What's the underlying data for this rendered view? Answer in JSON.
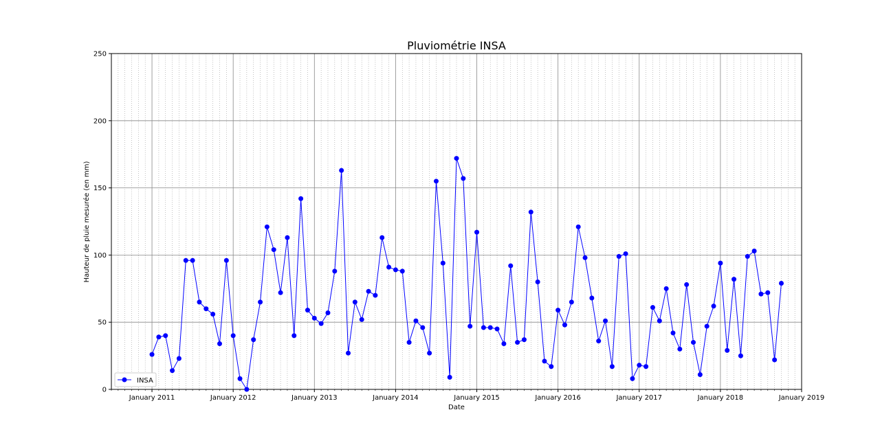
{
  "chart_data": {
    "type": "line",
    "title": "Pluviométrie INSA",
    "xlabel": "Date",
    "ylabel": "Hauteur de pluie mesurée (en mm)",
    "x_tick_labels": [
      "January 2011",
      "January 2012",
      "January 2013",
      "January 2014",
      "January 2015",
      "January 2016",
      "January 2017",
      "January 2018",
      "January 2019"
    ],
    "x_tick_dates": [
      "2011-01",
      "2012-01",
      "2013-01",
      "2014-01",
      "2015-01",
      "2016-01",
      "2017-01",
      "2018-01",
      "2019-01"
    ],
    "y_ticks": [
      0,
      50,
      100,
      150,
      200,
      250
    ],
    "xlim": [
      "2010-07",
      "2019-01"
    ],
    "ylim": [
      0,
      250
    ],
    "grid": {
      "major": true,
      "minor": true
    },
    "legend": {
      "location": "lower-left",
      "entries": [
        "INSA"
      ]
    },
    "series": [
      {
        "name": "INSA",
        "color": "#0000ff",
        "marker": "circle",
        "dates": [
          "2011-01",
          "2011-02",
          "2011-03",
          "2011-04",
          "2011-05",
          "2011-06",
          "2011-07",
          "2011-08",
          "2011-09",
          "2011-10",
          "2011-11",
          "2011-12",
          "2012-01",
          "2012-02",
          "2012-03",
          "2012-04",
          "2012-05",
          "2012-06",
          "2012-07",
          "2012-08",
          "2012-09",
          "2012-10",
          "2012-11",
          "2012-12",
          "2013-01",
          "2013-02",
          "2013-03",
          "2013-04",
          "2013-05",
          "2013-06",
          "2013-07",
          "2013-08",
          "2013-09",
          "2013-10",
          "2013-11",
          "2013-12",
          "2014-01",
          "2014-02",
          "2014-03",
          "2014-04",
          "2014-05",
          "2014-06",
          "2014-07",
          "2014-08",
          "2014-09",
          "2014-10",
          "2014-11",
          "2014-12",
          "2015-01",
          "2015-02",
          "2015-03",
          "2015-04",
          "2015-05",
          "2015-06",
          "2015-07",
          "2015-08",
          "2015-09",
          "2015-10",
          "2015-11",
          "2015-12",
          "2016-01",
          "2016-02",
          "2016-03",
          "2016-04",
          "2016-05",
          "2016-06",
          "2016-07",
          "2016-08",
          "2016-09",
          "2016-10",
          "2016-11",
          "2016-12",
          "2017-01",
          "2017-02",
          "2017-03",
          "2017-04",
          "2017-05",
          "2017-06",
          "2017-07",
          "2017-08",
          "2017-09",
          "2017-10",
          "2017-11",
          "2017-12",
          "2018-01",
          "2018-02",
          "2018-03",
          "2018-04",
          "2018-05",
          "2018-06",
          "2018-07",
          "2018-08",
          "2018-09",
          "2018-10",
          "2018-11",
          "2018-12"
        ],
        "values": [
          26,
          39,
          40,
          14,
          23,
          96,
          96,
          65,
          60,
          56,
          34,
          96,
          40,
          8,
          0,
          37,
          65,
          121,
          104,
          72,
          113,
          40,
          142,
          59,
          53,
          49,
          57,
          88,
          163,
          27,
          65,
          52,
          73,
          70,
          113,
          91,
          89,
          88,
          35,
          51,
          46,
          27,
          155,
          94,
          9,
          172,
          157,
          47,
          117,
          46,
          46,
          45,
          34,
          92,
          35,
          37,
          132,
          80,
          21,
          17,
          59,
          48,
          65,
          121,
          98,
          68,
          36,
          51,
          17,
          99,
          101,
          8,
          18,
          17,
          61,
          51,
          75,
          42,
          30,
          78,
          35,
          11,
          47,
          62,
          94,
          29,
          82,
          25,
          99,
          103,
          71,
          72,
          22,
          79,
          null,
          null
        ]
      }
    ]
  }
}
